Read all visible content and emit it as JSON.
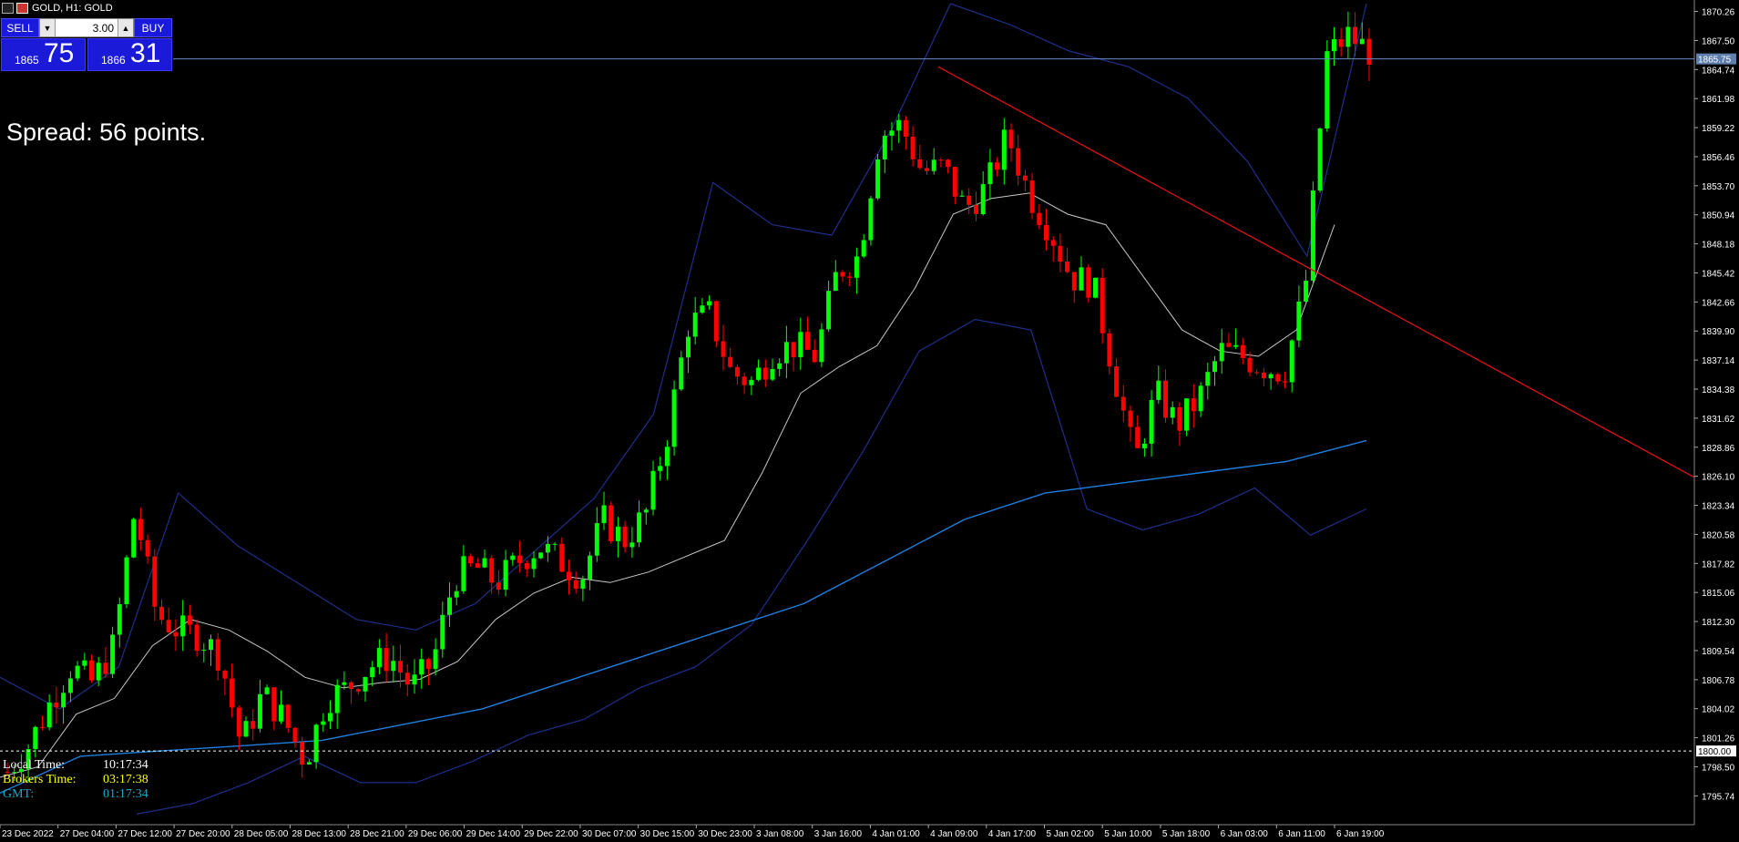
{
  "window": {
    "title": "GOLD, H1:  GOLD"
  },
  "trade_panel": {
    "sell_label": "SELL",
    "buy_label": "BUY",
    "lot_value": "3.00",
    "sell_price_small": "1865",
    "sell_price_big": "75",
    "buy_price_small": "1866",
    "buy_price_big": "31"
  },
  "spread_text": "Spread: 56 points.",
  "times": {
    "local_label": "Local Time:",
    "local_value": "10:17:34",
    "broker_label": "Brokers Time:",
    "broker_value": "03:17:38",
    "gmt_label": "GMT:",
    "gmt_value": "01:17:34"
  },
  "colors": {
    "background": "#000000",
    "bull": "#00ff00",
    "bear": "#ff0000",
    "ma_white": "#c8c8c8",
    "ma_blue": "#1e7fe0",
    "band": "#1f2f8a",
    "trendline": "#e01010",
    "bid_line": "#6a8cc8",
    "axis_text": "#ffffff",
    "local_color": "#ffffff",
    "broker_color": "#ffff00",
    "gmt_color": "#1fa7c8"
  },
  "chart_data": {
    "type": "candlestick",
    "symbol": "GOLD",
    "timeframe": "H1",
    "ylim": [
      1793.0,
      1871.0
    ],
    "price_labels": [
      "1870.26",
      "1867.50",
      "1864.74",
      "1861.98",
      "1859.22",
      "1856.46",
      "1853.70",
      "1850.94",
      "1848.18",
      "1845.42",
      "1842.66",
      "1839.90",
      "1837.14",
      "1834.38",
      "1831.62",
      "1828.86",
      "1826.10",
      "1823.34",
      "1820.58",
      "1817.82",
      "1815.06",
      "1812.30",
      "1809.54",
      "1806.78",
      "1804.02",
      "1801.26",
      "1798.50",
      "1795.74"
    ],
    "current_price_label": "1865.75",
    "current_price": 1865.75,
    "level_line_label": "1800.00",
    "level_line": 1800.0,
    "time_labels": [
      "23 Dec 2022",
      "27 Dec 04:00",
      "27 Dec 12:00",
      "27 Dec 20:00",
      "28 Dec 05:00",
      "28 Dec 13:00",
      "28 Dec 21:00",
      "29 Dec 06:00",
      "29 Dec 14:00",
      "29 Dec 22:00",
      "30 Dec 07:00",
      "30 Dec 15:00",
      "30 Dec 23:00",
      "3 Jan 08:00",
      "3 Jan 16:00",
      "4 Jan 01:00",
      "4 Jan 09:00",
      "4 Jan 17:00",
      "5 Jan 02:00",
      "5 Jan 10:00",
      "5 Jan 18:00",
      "6 Jan 03:00",
      "6 Jan 11:00",
      "6 Jan 19:00"
    ],
    "close_path": [
      1798.0,
      1800.5,
      1804.5,
      1808.0,
      1806.5,
      1810.0,
      1823.0,
      1813.0,
      1811.5,
      1811.0,
      1809.0,
      1800.5,
      1805.5,
      1803.0,
      1799.0,
      1805.0,
      1806.0,
      1808.0,
      1809.0,
      1806.0,
      1808.5,
      1816.5,
      1817.5,
      1816.0,
      1818.0,
      1819.5,
      1818.0,
      1816.5,
      1822.0,
      1820.0,
      1822.5,
      1830.0,
      1840.5,
      1841.5,
      1836.0,
      1835.0,
      1838.0,
      1838.5,
      1837.5,
      1845.5,
      1847.0,
      1858.5,
      1859.5,
      1855.0,
      1855.5,
      1851.5,
      1853.5,
      1858.5,
      1853.0,
      1849.5,
      1845.0,
      1844.5,
      1836.0,
      1827.5,
      1834.0,
      1831.0,
      1833.5,
      1838.0,
      1837.5,
      1836.5,
      1836.0,
      1844.0,
      1866.0,
      1868.0,
      1866.5
    ],
    "ma_white_points": [
      1797.5,
      1798.5,
      1803.5,
      1805.0,
      1810.0,
      1812.5,
      1811.5,
      1809.5,
      1807.0,
      1806.0,
      1806.5,
      1806.8,
      1808.5,
      1812.5,
      1815.0,
      1816.5,
      1816.0,
      1817.0,
      1818.5,
      1820.0,
      1826.5,
      1834.0,
      1836.5,
      1838.5,
      1844.0,
      1851.0,
      1852.5,
      1853.0,
      1851.0,
      1850.0,
      1845.0,
      1840.0,
      1838.0,
      1837.5,
      1840.0,
      1850.0
    ],
    "ma_blue_points": [
      1796.0,
      1799.5,
      1800.0,
      1800.5,
      1801.0,
      1802.5,
      1804.0,
      1806.5,
      1809.0,
      1811.5,
      1814.0,
      1818.0,
      1822.0,
      1824.5,
      1825.5,
      1826.5,
      1827.5,
      1829.5
    ],
    "band_upper_points": [
      1807.0,
      1804.0,
      1808.0,
      1824.5,
      1819.5,
      1816.0,
      1812.5,
      1811.5,
      1814.0,
      1819.0,
      1824.0,
      1832.0,
      1854.0,
      1850.0,
      1849.0,
      1859.0,
      1871.0,
      1869.0,
      1866.5,
      1865.0,
      1862.0,
      1856.0,
      1847.0,
      1871.0
    ],
    "band_lower_points": [
      1794.0,
      1795.0,
      1797.0,
      1799.5,
      1797.0,
      1797.0,
      1799.0,
      1801.5,
      1803.0,
      1806.0,
      1808.0,
      1812.0,
      1820.0,
      1828.5,
      1838.0,
      1841.0,
      1840.0,
      1823.0,
      1821.0,
      1822.5,
      1825.0,
      1820.5,
      1823.0
    ],
    "trendline": {
      "from": {
        "time": "4 Jan 09:00",
        "price": 1865.0
      },
      "to_price_at_right_edge": 1826.0
    }
  }
}
